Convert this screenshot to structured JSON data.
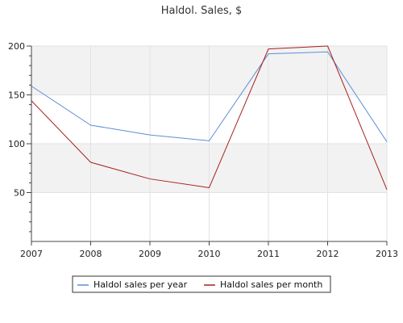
{
  "chart_data": {
    "type": "line",
    "title": "Haldol. Sales, $",
    "xlabel": "",
    "ylabel": "",
    "x": [
      "2007",
      "2008",
      "2009",
      "2010",
      "2011",
      "2012",
      "2013"
    ],
    "ylim": [
      0,
      200
    ],
    "y_ticks": [
      50,
      100,
      150,
      200
    ],
    "grid": true,
    "legend_position": "bottom-center",
    "series": [
      {
        "name": "Haldol sales per year",
        "color": "#5a8fd6",
        "values": [
          159,
          119,
          109,
          103,
          192,
          194,
          102
        ]
      },
      {
        "name": "Haldol sales per month",
        "color": "#a82020",
        "values": [
          144,
          81,
          64,
          55,
          197,
          200,
          53
        ]
      }
    ]
  }
}
